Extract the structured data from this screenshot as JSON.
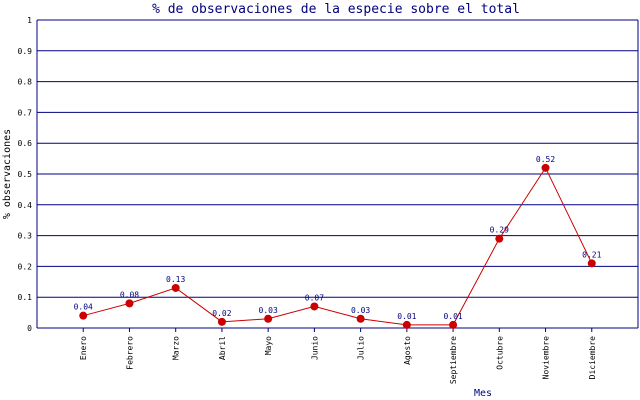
{
  "chart_data": {
    "type": "line",
    "title": "% de observaciones de la especie sobre el total",
    "x_label": "Mes",
    "y_label": "% observaciones",
    "categories": [
      "Enero",
      "Febrero",
      "Marzo",
      "Abril",
      "Mayo",
      "Junio",
      "Julio",
      "Agosto",
      "Septiembre",
      "Octubre",
      "Noviembre",
      "Diciembre"
    ],
    "series": [
      {
        "color": "#cc0000",
        "values": [
          0.04,
          0.08,
          0.13,
          0.02,
          0.03,
          0.07,
          0.03,
          0.01,
          0.01,
          0.29,
          0.52,
          0.21
        ]
      }
    ],
    "ylim": [
      0,
      1
    ],
    "yticks": [
      0,
      0.1,
      0.2,
      0.3,
      0.4,
      0.5,
      0.6,
      0.7,
      0.8,
      0.9,
      1
    ],
    "grid": true
  }
}
